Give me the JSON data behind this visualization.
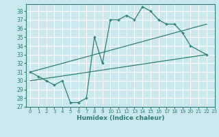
{
  "line1_x": [
    0,
    1,
    2,
    3,
    4,
    5,
    6,
    7,
    8,
    9,
    10,
    11,
    12,
    13,
    14,
    15,
    16,
    17,
    18,
    19,
    20,
    22
  ],
  "line1_y": [
    31,
    30.5,
    30,
    29.5,
    30,
    27.5,
    27.5,
    28,
    35,
    32,
    37,
    37,
    37.5,
    37,
    38.5,
    38,
    37,
    36.5,
    36.5,
    35.5,
    34,
    33
  ],
  "line2_x": [
    0,
    22
  ],
  "line2_y": [
    31,
    36.5
  ],
  "line3_x": [
    0,
    22
  ],
  "line3_y": [
    30,
    33
  ],
  "color": "#2e7d6e",
  "bg_color": "#cce8ef",
  "grid_color": "#ffffff",
  "xlabel": "Humidex (Indice chaleur)",
  "ylim": [
    27,
    38.8
  ],
  "xlim": [
    -0.5,
    23
  ],
  "yticks": [
    27,
    28,
    29,
    30,
    31,
    32,
    33,
    34,
    35,
    36,
    37,
    38
  ],
  "xticks": [
    0,
    1,
    2,
    3,
    4,
    5,
    6,
    7,
    8,
    9,
    10,
    11,
    12,
    13,
    14,
    15,
    16,
    17,
    18,
    19,
    20,
    21,
    22,
    23
  ]
}
